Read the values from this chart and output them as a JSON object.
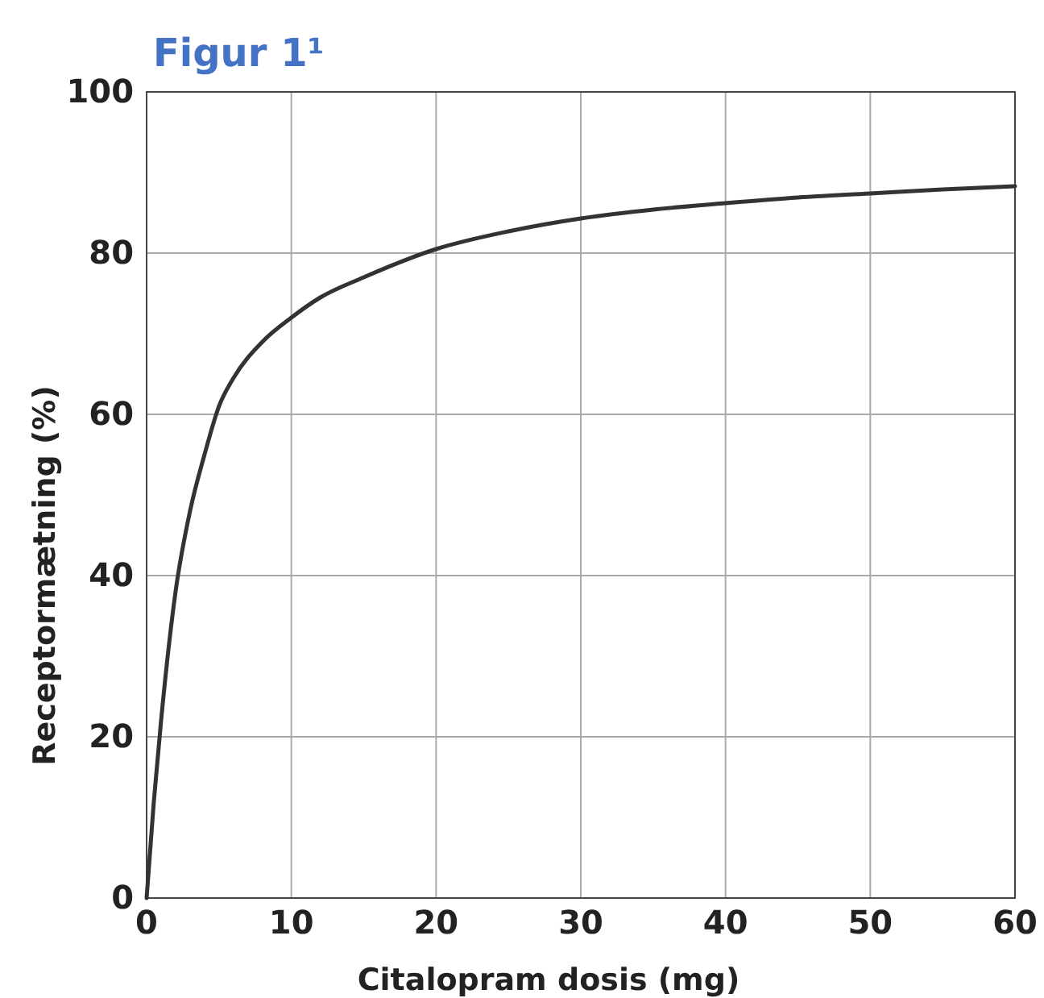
{
  "chart_data": {
    "type": "line",
    "title": "Figur 1¹",
    "xlabel": "Citalopram dosis (mg)",
    "ylabel": "Receptormætning (%)",
    "xlim": [
      0,
      60
    ],
    "xticks": [
      0,
      10,
      20,
      30,
      40,
      50,
      60
    ],
    "ylim": [
      0,
      100
    ],
    "yticks": [
      0,
      20,
      40,
      60,
      80,
      100
    ],
    "grid": true,
    "series": [
      {
        "color": "#333333",
        "x": [
          0,
          0.5,
          1,
          2,
          3,
          4,
          5,
          6,
          8,
          10,
          12,
          15,
          20,
          25,
          30,
          35,
          40,
          45,
          50,
          55,
          60
        ],
        "values": [
          0,
          12,
          22,
          38,
          48,
          55,
          61,
          64.5,
          69,
          72,
          74.5,
          77,
          80.5,
          82.7,
          84.3,
          85.4,
          86.2,
          86.9,
          87.4,
          87.9,
          88.3
        ]
      }
    ]
  }
}
